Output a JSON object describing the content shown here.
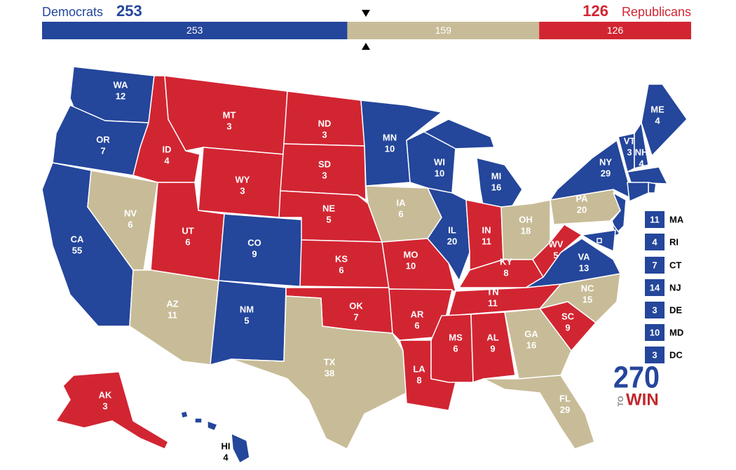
{
  "header": {
    "democrats": "Democrats",
    "republicans": "Republicans"
  },
  "bar": {
    "segments": [
      {
        "party": "D",
        "value": 253
      },
      {
        "party": "T",
        "value": 159
      },
      {
        "party": "R",
        "value": 126
      }
    ]
  },
  "colors": {
    "D": "#24469b",
    "R": "#d22532",
    "T": "#c8bc98"
  },
  "states": [
    {
      "abbr": "WA",
      "votes": 12,
      "party": "D"
    },
    {
      "abbr": "OR",
      "votes": 7,
      "party": "D"
    },
    {
      "abbr": "CA",
      "votes": 55,
      "party": "D"
    },
    {
      "abbr": "NV",
      "votes": 6,
      "party": "T"
    },
    {
      "abbr": "ID",
      "votes": 4,
      "party": "R"
    },
    {
      "abbr": "MT",
      "votes": 3,
      "party": "R"
    },
    {
      "abbr": "WY",
      "votes": 3,
      "party": "R"
    },
    {
      "abbr": "UT",
      "votes": 6,
      "party": "R"
    },
    {
      "abbr": "CO",
      "votes": 9,
      "party": "D"
    },
    {
      "abbr": "AZ",
      "votes": 11,
      "party": "T"
    },
    {
      "abbr": "NM",
      "votes": 5,
      "party": "D"
    },
    {
      "abbr": "ND",
      "votes": 3,
      "party": "R"
    },
    {
      "abbr": "SD",
      "votes": 3,
      "party": "R"
    },
    {
      "abbr": "NE",
      "votes": 5,
      "party": "R"
    },
    {
      "abbr": "KS",
      "votes": 6,
      "party": "R"
    },
    {
      "abbr": "OK",
      "votes": 7,
      "party": "R"
    },
    {
      "abbr": "TX",
      "votes": 38,
      "party": "T"
    },
    {
      "abbr": "MN",
      "votes": 10,
      "party": "D"
    },
    {
      "abbr": "IA",
      "votes": 6,
      "party": "T"
    },
    {
      "abbr": "MO",
      "votes": 10,
      "party": "R"
    },
    {
      "abbr": "AR",
      "votes": 6,
      "party": "R"
    },
    {
      "abbr": "LA",
      "votes": 8,
      "party": "R"
    },
    {
      "abbr": "WI",
      "votes": 10,
      "party": "D"
    },
    {
      "abbr": "IL",
      "votes": 20,
      "party": "D"
    },
    {
      "abbr": "MI",
      "votes": 16,
      "party": "D"
    },
    {
      "abbr": "IN",
      "votes": 11,
      "party": "R"
    },
    {
      "abbr": "OH",
      "votes": 18,
      "party": "T"
    },
    {
      "abbr": "KY",
      "votes": 8,
      "party": "R"
    },
    {
      "abbr": "TN",
      "votes": 11,
      "party": "R"
    },
    {
      "abbr": "MS",
      "votes": 6,
      "party": "R"
    },
    {
      "abbr": "AL",
      "votes": 9,
      "party": "R"
    },
    {
      "abbr": "GA",
      "votes": 16,
      "party": "T"
    },
    {
      "abbr": "FL",
      "votes": 29,
      "party": "T"
    },
    {
      "abbr": "SC",
      "votes": 9,
      "party": "R"
    },
    {
      "abbr": "NC",
      "votes": 15,
      "party": "T"
    },
    {
      "abbr": "VA",
      "votes": 13,
      "party": "D"
    },
    {
      "abbr": "WV",
      "votes": 5,
      "party": "R"
    },
    {
      "abbr": "PA",
      "votes": 20,
      "party": "T"
    },
    {
      "abbr": "NY",
      "votes": 29,
      "party": "D"
    },
    {
      "abbr": "VT",
      "votes": 3,
      "party": "D"
    },
    {
      "abbr": "NH",
      "votes": 4,
      "party": "D"
    },
    {
      "abbr": "ME",
      "votes": 4,
      "party": "D"
    },
    {
      "abbr": "MA",
      "votes": 11,
      "party": "D",
      "callout": true
    },
    {
      "abbr": "RI",
      "votes": 4,
      "party": "D",
      "callout": true
    },
    {
      "abbr": "CT",
      "votes": 7,
      "party": "D",
      "callout": true
    },
    {
      "abbr": "NJ",
      "votes": 14,
      "party": "D",
      "callout": true
    },
    {
      "abbr": "DE",
      "votes": 3,
      "party": "D",
      "callout": true
    },
    {
      "abbr": "MD",
      "votes": 10,
      "party": "D",
      "callout": true
    },
    {
      "abbr": "DC",
      "votes": 3,
      "party": "D",
      "callout": true
    },
    {
      "abbr": "AK",
      "votes": 3,
      "party": "R"
    },
    {
      "abbr": "HI",
      "votes": 4,
      "party": "D"
    }
  ],
  "logo": {
    "number": "270",
    "to": "TO",
    "win": "WIN"
  }
}
